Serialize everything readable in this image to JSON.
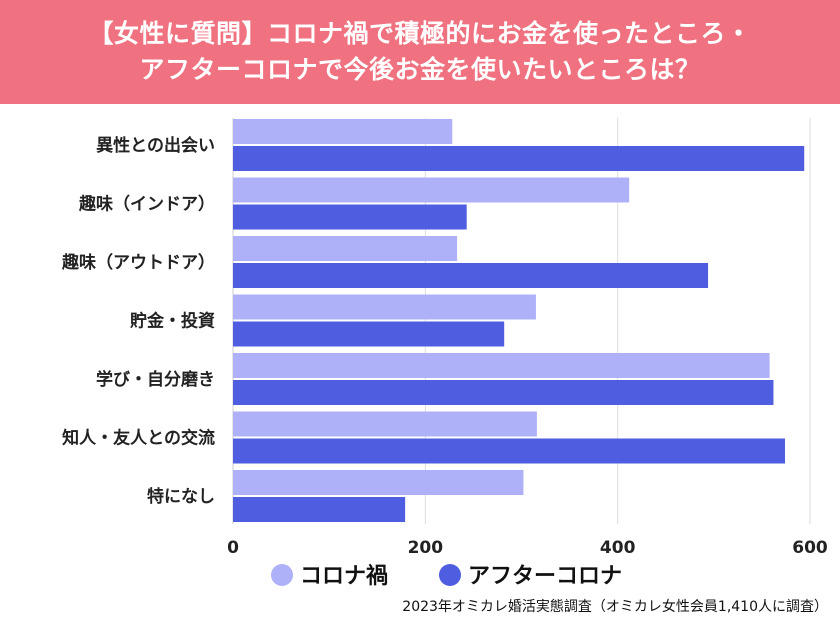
{
  "title": {
    "line1": "【女性に質問】コロナ禍で積極的にお金を使ったところ・",
    "line2": "アフターコロナで今後お金を使いたいところは？"
  },
  "source": "2023年オミカレ婚活実態調査（オミカレ女性会員1,410人に調査）",
  "colors": {
    "banner": "#f0717f",
    "series_during": "#aeb0f8",
    "series_after": "#4f5ee0"
  },
  "chart_data": {
    "type": "bar",
    "orientation": "horizontal",
    "categories": [
      "異性との出会い",
      "趣味（インドア）",
      "趣味（アウトドア）",
      "貯金・投資",
      "学び・自分磨き",
      "知人・友人との交流",
      "特になし"
    ],
    "series": [
      {
        "name": "コロナ禍",
        "values": [
          228,
          412,
          233,
          315,
          558,
          316,
          302
        ]
      },
      {
        "name": "アフターコロナ",
        "values": [
          594,
          243,
          494,
          282,
          562,
          574,
          179
        ]
      }
    ],
    "xlim": [
      0,
      600
    ],
    "xticks": [
      0,
      200,
      400,
      600
    ],
    "grid": true,
    "legend_position": "bottom"
  }
}
